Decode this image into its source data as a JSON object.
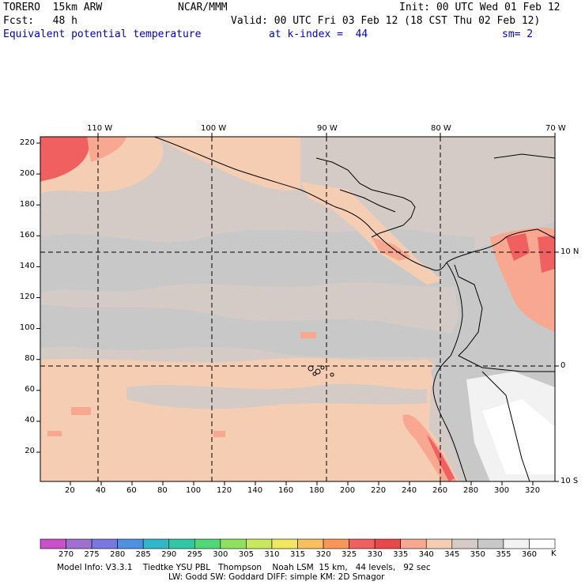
{
  "header": {
    "model": "TORERO  15km ARW",
    "center": "NCAR/MMM",
    "init": "Init: 00 UTC Wed 01 Feb 12",
    "fcst": "Fcst:   48 h",
    "valid": "Valid: 00 UTC Fri 03 Feb 12 (18 CST Thu 02 Feb 12)",
    "field": "Equivalent potential temperature",
    "level": "at k-index =  44",
    "smooth": "sm= 2"
  },
  "map": {
    "top_lon_labels": [
      "110 W",
      "100 W",
      "90 W",
      "80 W",
      "70 W"
    ],
    "right_lat_labels": [
      "10 N",
      "0",
      "10 S"
    ],
    "y_grid_labels": [
      "220",
      "200",
      "180",
      "160",
      "140",
      "120",
      "100",
      "80",
      "60",
      "40",
      "20"
    ],
    "x_grid_labels": [
      "20",
      "40",
      "60",
      "80",
      "100",
      "120",
      "140",
      "160",
      "180",
      "200",
      "220",
      "240",
      "260",
      "280",
      "300",
      "320"
    ],
    "islands_label": ""
  },
  "colorbar": {
    "unit": "K",
    "labels": [
      "270",
      "275",
      "280",
      "285",
      "290",
      "295",
      "300",
      "305",
      "310",
      "315",
      "320",
      "325",
      "330",
      "335",
      "340",
      "345",
      "350",
      "355",
      "360"
    ],
    "colors": [
      "#c850c8",
      "#a070d0",
      "#7878e0",
      "#5090e0",
      "#30b8c8",
      "#30c8a0",
      "#50d878",
      "#90e060",
      "#c8e860",
      "#f0e860",
      "#f8c060",
      "#f89858",
      "#f06060",
      "#e84848",
      "#f8a890",
      "#f5cdb2",
      "#d5cbc6",
      "#c8c8c8",
      "#f2f2f2",
      "#ffffff"
    ]
  },
  "footer": {
    "line1": "Model Info: V3.3.1    Tiedtke YSU PBL   Thompson    Noah LSM  15 km,   44 levels,   92 sec",
    "line2": "LW: Godd SW: Goddard DIFF: simple KM: 2D Smagor"
  }
}
